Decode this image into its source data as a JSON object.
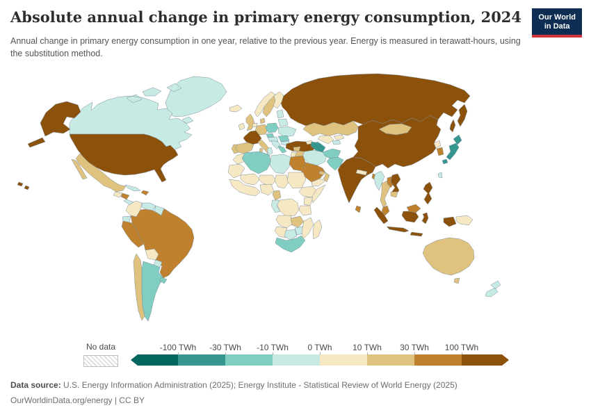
{
  "header": {
    "title": "Absolute annual change in primary energy consumption, 2024",
    "subtitle": "Annual change in primary energy consumption in one year, relative to the previous year. Energy is measured in terawatt-hours, using the substitution method.",
    "logo": {
      "line1": "Our World",
      "line2": "in Data",
      "bg_color": "#0d2d52",
      "accent_color": "#d0353c"
    }
  },
  "legend": {
    "no_data_label": "No data",
    "ticks": [
      "-100 TWh",
      "-30 TWh",
      "-10 TWh",
      "0 TWh",
      "10 TWh",
      "30 TWh",
      "100 TWh"
    ]
  },
  "footer": {
    "source_label": "Data source:",
    "source_text": " U.S. Energy Information Administration (2025); Energy Institute - Statistical Review of World Energy (2025)",
    "link_text": "OurWorldinData.org/energy | CC BY"
  },
  "chart_data": {
    "type": "choropleth",
    "title": "Absolute annual change in primary energy consumption, 2024",
    "unit": "TWh",
    "legend_position": "bottom",
    "bins": [
      {
        "id": "b1",
        "label": "< -100 TWh",
        "color": "#01665e"
      },
      {
        "id": "b2",
        "label": "-100 to -30 TWh",
        "color": "#35978f"
      },
      {
        "id": "b3",
        "label": "-30 to -10 TWh",
        "color": "#80cdc1"
      },
      {
        "id": "b4",
        "label": "-10 to 0 TWh",
        "color": "#c7eae5"
      },
      {
        "id": "b5",
        "label": "0 to 10 TWh",
        "color": "#f6e8c3"
      },
      {
        "id": "b6",
        "label": "10 to 30 TWh",
        "color": "#dfc27d"
      },
      {
        "id": "b7",
        "label": "30 to 100 TWh",
        "color": "#bf812d"
      },
      {
        "id": "b8",
        "label": "> 100 TWh",
        "color": "#8c510a"
      }
    ],
    "no_data_style": "hatched",
    "regions": [
      {
        "id": "greenland",
        "name": "Greenland",
        "bin": "b4"
      },
      {
        "id": "canada",
        "name": "Canada",
        "bin": "b4"
      },
      {
        "id": "united-states",
        "name": "United States",
        "bin": "b8"
      },
      {
        "id": "mexico",
        "name": "Mexico",
        "bin": "b6"
      },
      {
        "id": "guatemala",
        "name": "Guatemala",
        "bin": "b5"
      },
      {
        "id": "honduras",
        "name": "Honduras",
        "bin": "b7"
      },
      {
        "id": "central-america",
        "name": "Central America",
        "bin": "b4"
      },
      {
        "id": "cuba",
        "name": "Cuba",
        "bin": "b4"
      },
      {
        "id": "hispaniola",
        "name": "Dominican Republic",
        "bin": "b7"
      },
      {
        "id": "colombia",
        "name": "Colombia",
        "bin": "b5"
      },
      {
        "id": "venezuela",
        "name": "Venezuela",
        "bin": "b4"
      },
      {
        "id": "guyanas",
        "name": "Guyana",
        "bin": "b4"
      },
      {
        "id": "ecuador",
        "name": "Ecuador",
        "bin": "b4"
      },
      {
        "id": "peru",
        "name": "Peru",
        "bin": "b7"
      },
      {
        "id": "brazil",
        "name": "Brazil",
        "bin": "b7"
      },
      {
        "id": "bolivia",
        "name": "Bolivia",
        "bin": "b5"
      },
      {
        "id": "paraguay",
        "name": "Paraguay",
        "bin": "b4"
      },
      {
        "id": "chile",
        "name": "Chile",
        "bin": "b6"
      },
      {
        "id": "argentina",
        "name": "Argentina",
        "bin": "b3"
      },
      {
        "id": "uruguay",
        "name": "Uruguay",
        "bin": "b3"
      },
      {
        "id": "russia",
        "name": "Russia",
        "bin": "b8"
      },
      {
        "id": "iceland",
        "name": "Iceland",
        "bin": "b5"
      },
      {
        "id": "ireland",
        "name": "Ireland",
        "bin": "b5"
      },
      {
        "id": "uk",
        "name": "United Kingdom",
        "bin": "b6"
      },
      {
        "id": "norway",
        "name": "Norway",
        "bin": "b5"
      },
      {
        "id": "sweden",
        "name": "Sweden",
        "bin": "b6"
      },
      {
        "id": "finland",
        "name": "Finland",
        "bin": "b5"
      },
      {
        "id": "denmark",
        "name": "Denmark",
        "bin": "b6"
      },
      {
        "id": "baltics",
        "name": "Baltic states",
        "bin": "b4"
      },
      {
        "id": "netherlands",
        "name": "Netherlands",
        "bin": "b5"
      },
      {
        "id": "germany",
        "name": "Germany",
        "bin": "b6"
      },
      {
        "id": "poland",
        "name": "Poland",
        "bin": "b3"
      },
      {
        "id": "belarus",
        "name": "Belarus",
        "bin": "b4"
      },
      {
        "id": "ukraine",
        "name": "Ukraine",
        "bin": "b4"
      },
      {
        "id": "czechia",
        "name": "Czechia",
        "bin": "b3"
      },
      {
        "id": "austria-hungary",
        "name": "Hungary",
        "bin": "b4"
      },
      {
        "id": "france",
        "name": "France",
        "bin": "b8"
      },
      {
        "id": "spain",
        "name": "Spain",
        "bin": "b6"
      },
      {
        "id": "portugal",
        "name": "Portugal",
        "bin": "b6"
      },
      {
        "id": "italy",
        "name": "Italy",
        "bin": "b6"
      },
      {
        "id": "balkans",
        "name": "Serbia",
        "bin": "b4"
      },
      {
        "id": "romania",
        "name": "Romania",
        "bin": "b3"
      },
      {
        "id": "bulgaria",
        "name": "Bulgaria",
        "bin": "b4"
      },
      {
        "id": "greece",
        "name": "Greece",
        "bin": "b3"
      },
      {
        "id": "turkey",
        "name": "Turkey",
        "bin": "b8"
      },
      {
        "id": "kazakhstan",
        "name": "Kazakhstan",
        "bin": "b6"
      },
      {
        "id": "georgia",
        "name": "Georgia",
        "bin": "b5"
      },
      {
        "id": "azerbaijan",
        "name": "Azerbaijan",
        "bin": "b3"
      },
      {
        "id": "turkmenistan",
        "name": "Turkmenistan",
        "bin": "b2"
      },
      {
        "id": "uzbekistan",
        "name": "Uzbekistan",
        "bin": "b5"
      },
      {
        "id": "kyrgyzstan",
        "name": "Kyrgyzstan",
        "bin": "b5"
      },
      {
        "id": "tajikistan",
        "name": "Tajikistan",
        "bin": "b4"
      },
      {
        "id": "iran",
        "name": "Iran",
        "bin": "b4"
      },
      {
        "id": "iraq",
        "name": "Iraq",
        "bin": "b6"
      },
      {
        "id": "syria",
        "name": "Syria",
        "bin": "b6"
      },
      {
        "id": "jordan",
        "name": "Jordan",
        "bin": "b5"
      },
      {
        "id": "saudi-arabia",
        "name": "Saudi Arabia",
        "bin": "b7"
      },
      {
        "id": "yemen",
        "name": "Yemen",
        "bin": "b5"
      },
      {
        "id": "oman",
        "name": "Oman",
        "bin": "b6"
      },
      {
        "id": "uae",
        "name": "United Arab Emirates",
        "bin": "b6"
      },
      {
        "id": "afghanistan",
        "name": "Afghanistan",
        "bin": "b3"
      },
      {
        "id": "pakistan",
        "name": "Pakistan",
        "bin": "b3"
      },
      {
        "id": "china",
        "name": "China",
        "bin": "b8"
      },
      {
        "id": "mongolia",
        "name": "Mongolia",
        "bin": "b6"
      },
      {
        "id": "north-korea",
        "name": "North Korea",
        "bin": "b5"
      },
      {
        "id": "south-korea",
        "name": "South Korea",
        "bin": "b7"
      },
      {
        "id": "japan",
        "name": "Japan",
        "bin": "b2"
      },
      {
        "id": "taiwan",
        "name": "Taiwan",
        "bin": "b4"
      },
      {
        "id": "india",
        "name": "India",
        "bin": "b8"
      },
      {
        "id": "nepal",
        "name": "Nepal",
        "bin": "b5"
      },
      {
        "id": "bangladesh",
        "name": "Bangladesh",
        "bin": "b7"
      },
      {
        "id": "sri-lanka",
        "name": "Sri Lanka",
        "bin": "b7"
      },
      {
        "id": "myanmar",
        "name": "Myanmar",
        "bin": "b4"
      },
      {
        "id": "thailand",
        "name": "Thailand",
        "bin": "b6"
      },
      {
        "id": "laos",
        "name": "Laos",
        "bin": "b7"
      },
      {
        "id": "vietnam",
        "name": "Vietnam",
        "bin": "b8"
      },
      {
        "id": "cambodia",
        "name": "Cambodia",
        "bin": "b6"
      },
      {
        "id": "indonesia",
        "name": "Indonesia",
        "bin": "b8"
      },
      {
        "id": "malaysia",
        "name": "Malaysia",
        "bin": "b7"
      },
      {
        "id": "philippines",
        "name": "Philippines",
        "bin": "b8"
      },
      {
        "id": "papua-new-guinea",
        "name": "Papua New Guinea",
        "bin": "b5"
      },
      {
        "id": "morocco",
        "name": "Morocco",
        "bin": "b5"
      },
      {
        "id": "mauritania",
        "name": "Mauritania",
        "bin": "b5"
      },
      {
        "id": "algeria",
        "name": "Algeria",
        "bin": "b3"
      },
      {
        "id": "tunisia",
        "name": "Tunisia",
        "bin": "b4"
      },
      {
        "id": "libya",
        "name": "Libya",
        "bin": "b4"
      },
      {
        "id": "egypt",
        "name": "Egypt",
        "bin": "b7"
      },
      {
        "id": "mali",
        "name": "Mali",
        "bin": "b5"
      },
      {
        "id": "niger",
        "name": "Niger",
        "bin": "b5"
      },
      {
        "id": "chad",
        "name": "Chad",
        "bin": "b5"
      },
      {
        "id": "sudan",
        "name": "Sudan",
        "bin": "b5"
      },
      {
        "id": "west-africa",
        "name": "West Africa",
        "bin": "b5"
      },
      {
        "id": "nigeria",
        "name": "Nigeria",
        "bin": "b5"
      },
      {
        "id": "cameroon",
        "name": "Cameroon",
        "bin": "b6"
      },
      {
        "id": "ethiopia",
        "name": "Ethiopia",
        "bin": "b5"
      },
      {
        "id": "somalia",
        "name": "Somalia",
        "bin": "b5"
      },
      {
        "id": "kenya",
        "name": "Kenya",
        "bin": "b5"
      },
      {
        "id": "tanzania",
        "name": "Tanzania",
        "bin": "b5"
      },
      {
        "id": "drc",
        "name": "Democratic Republic of Congo",
        "bin": "b5"
      },
      {
        "id": "gabon-congo",
        "name": "Gabon",
        "bin": "b4"
      },
      {
        "id": "angola",
        "name": "Angola",
        "bin": "b5"
      },
      {
        "id": "zambia",
        "name": "Zambia",
        "bin": "b6"
      },
      {
        "id": "zimbabwe",
        "name": "Zimbabwe",
        "bin": "b4"
      },
      {
        "id": "mozambique",
        "name": "Mozambique",
        "bin": "b5"
      },
      {
        "id": "namibia",
        "name": "Namibia",
        "bin": "b5"
      },
      {
        "id": "botswana",
        "name": "Botswana",
        "bin": "b4"
      },
      {
        "id": "south-africa",
        "name": "South Africa",
        "bin": "b3"
      },
      {
        "id": "madagascar",
        "name": "Madagascar",
        "bin": "b5"
      },
      {
        "id": "australia",
        "name": "Australia",
        "bin": "b6"
      },
      {
        "id": "new-zealand",
        "name": "New Zealand",
        "bin": "b4"
      }
    ]
  }
}
